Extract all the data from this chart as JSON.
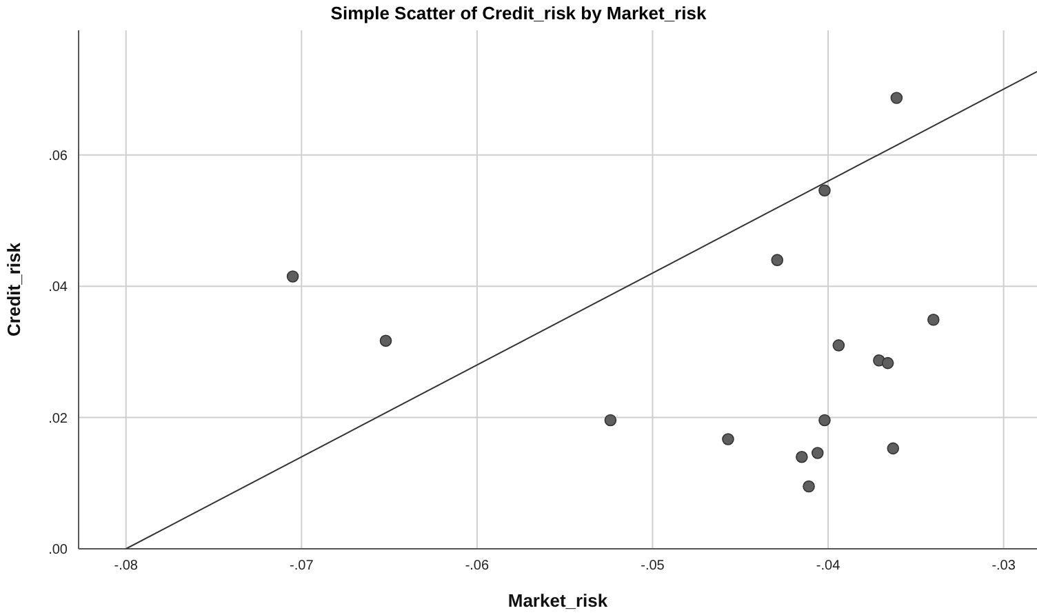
{
  "chart_data": {
    "type": "scatter",
    "title": "Simple Scatter of Credit_risk by Market_risk",
    "xlabel": "Market_risk",
    "ylabel": "Credit_risk",
    "series": [
      {
        "color": "#5f5f5f",
        "marker": "circle",
        "x": [
          -0.0705,
          -0.0652,
          -0.0524,
          -0.0457,
          -0.0429,
          -0.0415,
          -0.0406,
          -0.0411,
          -0.0402,
          -0.0402,
          -0.0394,
          -0.0371,
          -0.0366,
          -0.0363,
          -0.0361,
          -0.034
        ],
        "values": [
          0.0415,
          0.0317,
          0.0196,
          0.0167,
          0.044,
          0.014,
          0.0146,
          0.0095,
          0.0546,
          0.0196,
          0.031,
          0.0287,
          0.0283,
          0.0153,
          0.0687,
          0.0349
        ]
      },
      {
        "type": "line",
        "color": "#333333",
        "marker": "none",
        "x": [
          -0.08,
          -0.0281
        ],
        "values": [
          0,
          0.0727
        ]
      }
    ],
    "xlim": [
      -0.0827,
      -0.0281
    ],
    "ylim": [
      0,
      0.079
    ],
    "xticks": [
      {
        "value": -0.08,
        "label": "-.08"
      },
      {
        "value": -0.07,
        "label": "-.07"
      },
      {
        "value": -0.06,
        "label": "-.06"
      },
      {
        "value": -0.05,
        "label": "-.05"
      },
      {
        "value": -0.04,
        "label": "-.04"
      },
      {
        "value": -0.03,
        "label": "-.03"
      }
    ],
    "yticks": [
      {
        "value": 0,
        "label": ".00"
      },
      {
        "value": 0.02,
        "label": ".02"
      },
      {
        "value": 0.04,
        "label": ".04"
      },
      {
        "value": 0.06,
        "label": ".06"
      }
    ],
    "grid": true,
    "legend": false
  }
}
